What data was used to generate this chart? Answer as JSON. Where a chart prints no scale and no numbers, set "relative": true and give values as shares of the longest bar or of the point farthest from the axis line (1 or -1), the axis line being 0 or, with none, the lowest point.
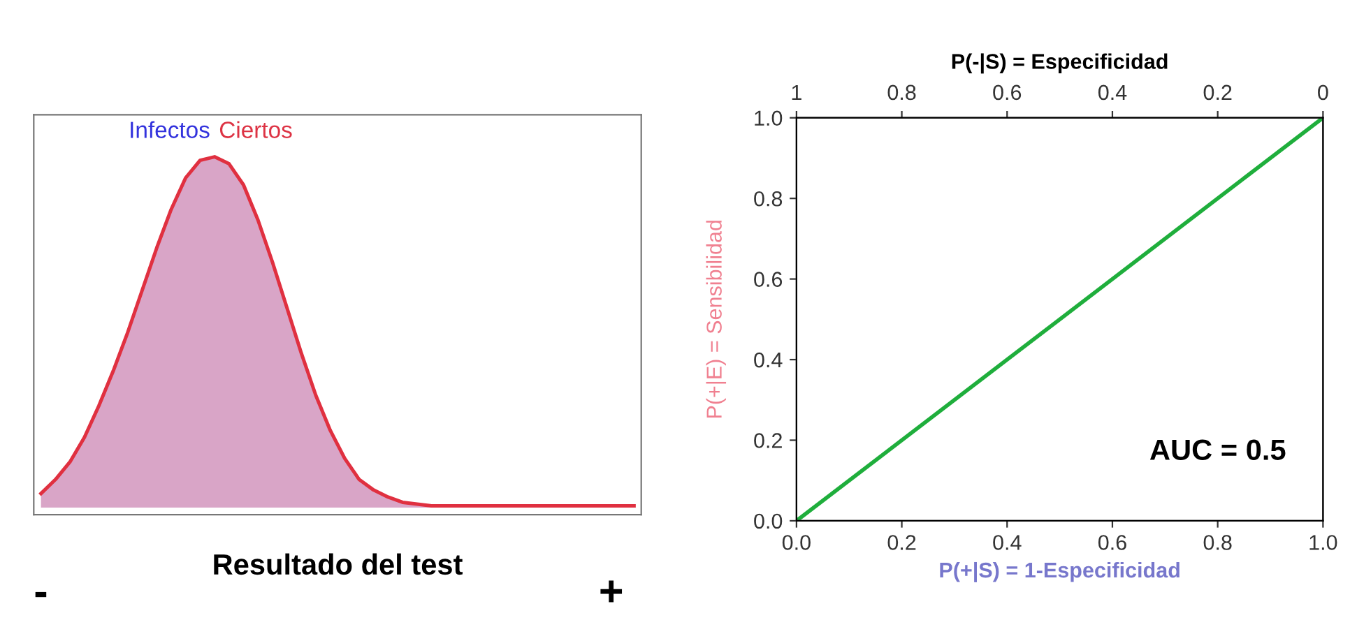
{
  "chart_data": [
    {
      "type": "area",
      "relative": true,
      "xlabel": "Resultado del test",
      "grid": false,
      "categories": [
        null,
        null,
        null,
        null,
        null,
        null,
        null,
        null,
        null,
        null,
        null,
        null,
        null,
        null,
        null,
        null,
        null,
        null,
        null,
        null,
        null,
        null,
        null,
        null,
        null,
        null,
        null,
        null,
        null,
        null,
        null,
        null,
        null,
        null,
        null,
        null,
        null,
        null,
        null,
        null,
        null,
        null
      ],
      "series": [
        {
          "color": "#d9a5c7",
          "values": [
            0.04,
            0.08,
            0.13,
            0.2,
            0.29,
            0.39,
            0.5,
            0.62,
            0.74,
            0.85,
            0.94,
            0.99,
            1.0,
            0.98,
            0.92,
            0.82,
            0.7,
            0.57,
            0.44,
            0.32,
            0.22,
            0.14,
            0.08,
            0.05,
            0.03,
            0.015,
            0.01,
            0.005,
            0.005,
            0.005,
            0.005,
            0.005,
            0.005,
            0.005,
            0.005,
            0.005,
            0.005,
            0.005,
            0.005,
            0.005,
            0.005,
            0.005
          ]
        }
      ],
      "annotations": [
        "Infectos",
        "Ciertos",
        "-",
        "+"
      ]
    },
    {
      "type": "line",
      "xlabel": "P(+|S) = 1-Especificidad",
      "ylabel": "P(+|E) = Sensibilidad",
      "x2label": "P(-|S) = Especificidad",
      "grid": false,
      "xlim": [
        0,
        1
      ],
      "xticks": [
        {
          "value": 0,
          "label": "0.0"
        },
        0.2,
        0.4,
        0.6,
        0.8,
        {
          "value": 1,
          "label": "1.0"
        }
      ],
      "ylim": [
        0,
        1
      ],
      "yticks": [
        {
          "value": 0,
          "label": "0.0"
        },
        0.2,
        0.4,
        0.6,
        0.8,
        {
          "value": 1,
          "label": "1.0"
        }
      ],
      "x2lim": [
        1,
        0
      ],
      "x2ticks": [
        1,
        0.8,
        0.6,
        0.4,
        0.2,
        0
      ],
      "series": [
        {
          "color": "#1fae3c",
          "x": [
            0,
            1
          ],
          "values": [
            0,
            1
          ]
        }
      ],
      "annotations": [
        "AUC = 0.5"
      ]
    }
  ]
}
